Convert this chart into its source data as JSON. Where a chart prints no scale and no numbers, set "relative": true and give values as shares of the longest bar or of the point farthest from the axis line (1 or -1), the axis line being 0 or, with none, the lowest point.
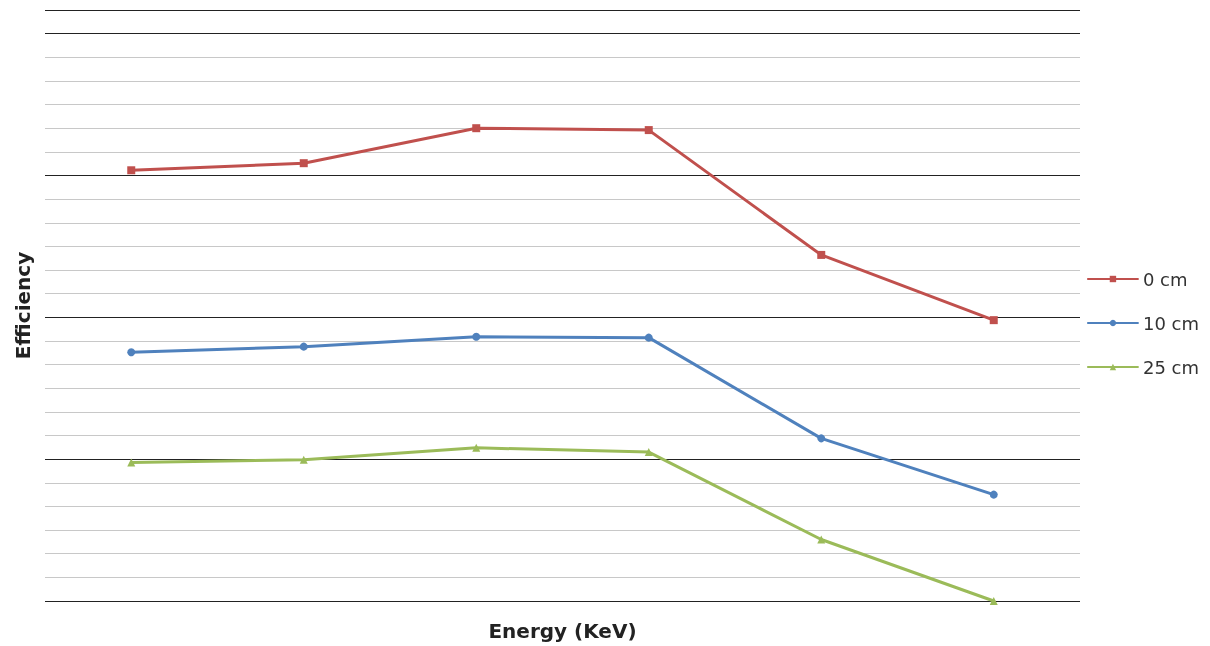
{
  "chart_data": {
    "type": "line",
    "relative": true,
    "xlabel": "Energy (KeV)",
    "ylabel": "Efficiency",
    "categories": [
      null,
      null,
      null,
      null,
      null,
      null
    ],
    "grid": "y",
    "legend": "right",
    "line_style": "solid",
    "series": [
      {
        "name": "0 cm",
        "color": "#c0504d",
        "marker": "square",
        "values": [
          0.911,
          0.926,
          1,
          0.996,
          0.732,
          0.594
        ]
      },
      {
        "name": "10 cm",
        "color": "#4f81bd",
        "marker": "circle",
        "values": [
          0.526,
          0.538,
          0.559,
          0.557,
          0.344,
          0.225
        ]
      },
      {
        "name": "25 cm",
        "color": "#9bbb59",
        "marker": "triangle",
        "values": [
          0.293,
          0.299,
          0.324,
          0.315,
          0.13,
          0
        ]
      }
    ]
  }
}
